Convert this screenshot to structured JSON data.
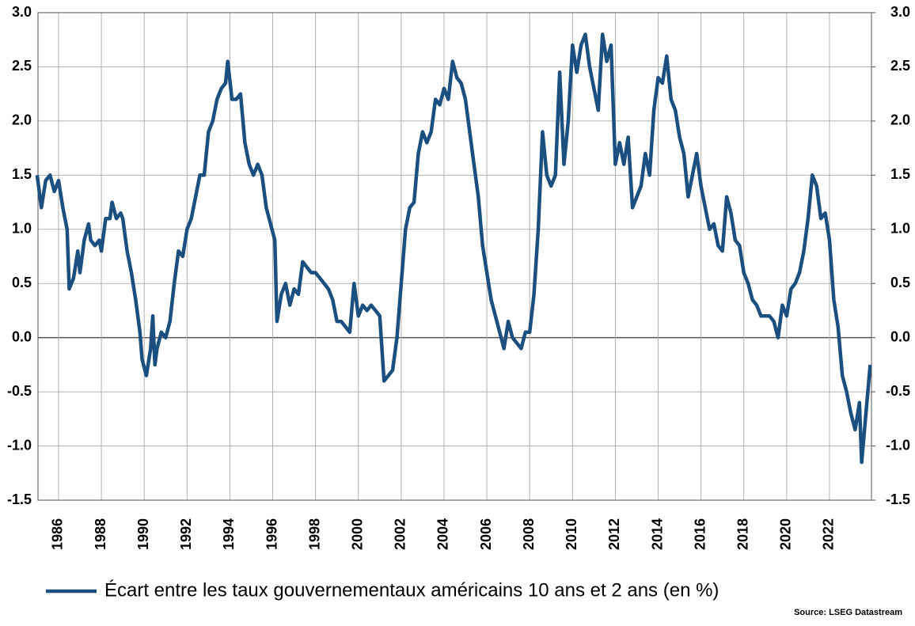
{
  "chart_data": {
    "type": "line",
    "source": "Source: LSEG Datastream",
    "x": [
      1985.0,
      1985.2,
      1985.4,
      1985.6,
      1985.8,
      1986.0,
      1986.2,
      1986.4,
      1986.5,
      1986.7,
      1986.9,
      1987.0,
      1987.2,
      1987.4,
      1987.5,
      1987.7,
      1987.9,
      1988.0,
      1988.2,
      1988.4,
      1988.5,
      1988.7,
      1988.9,
      1989.0,
      1989.2,
      1989.4,
      1989.6,
      1989.8,
      1989.9,
      1990.1,
      1990.3,
      1990.4,
      1990.5,
      1990.6,
      1990.8,
      1991.0,
      1991.2,
      1991.4,
      1991.6,
      1991.8,
      1992.0,
      1992.2,
      1992.4,
      1992.6,
      1992.8,
      1993.0,
      1993.2,
      1993.4,
      1993.6,
      1993.8,
      1993.9,
      1994.1,
      1994.3,
      1994.5,
      1994.7,
      1994.9,
      1995.1,
      1995.3,
      1995.5,
      1995.7,
      1995.9,
      1996.1,
      1996.2,
      1996.4,
      1996.6,
      1996.8,
      1997.0,
      1997.2,
      1997.4,
      1997.6,
      1997.8,
      1998.0,
      1998.2,
      1998.4,
      1998.6,
      1998.8,
      1999.0,
      1999.2,
      1999.4,
      1999.6,
      1999.8,
      2000.0,
      2000.2,
      2000.4,
      2000.6,
      2000.8,
      2001.0,
      2001.2,
      2001.4,
      2001.6,
      2001.8,
      2002.0,
      2002.2,
      2002.4,
      2002.6,
      2002.8,
      2003.0,
      2003.2,
      2003.4,
      2003.6,
      2003.8,
      2004.0,
      2004.2,
      2004.4,
      2004.6,
      2004.8,
      2005.0,
      2005.2,
      2005.4,
      2005.6,
      2005.8,
      2006.0,
      2006.2,
      2006.4,
      2006.6,
      2006.8,
      2007.0,
      2007.2,
      2007.4,
      2007.6,
      2007.8,
      2008.0,
      2008.2,
      2008.4,
      2008.6,
      2008.8,
      2009.0,
      2009.2,
      2009.4,
      2009.6,
      2009.8,
      2010.0,
      2010.2,
      2010.4,
      2010.6,
      2010.8,
      2011.0,
      2011.2,
      2011.4,
      2011.6,
      2011.8,
      2012.0,
      2012.2,
      2012.4,
      2012.6,
      2012.8,
      2013.0,
      2013.2,
      2013.4,
      2013.6,
      2013.8,
      2014.0,
      2014.2,
      2014.4,
      2014.6,
      2014.8,
      2015.0,
      2015.2,
      2015.4,
      2015.6,
      2015.8,
      2016.0,
      2016.2,
      2016.4,
      2016.6,
      2016.8,
      2017.0,
      2017.2,
      2017.4,
      2017.6,
      2017.8,
      2018.0,
      2018.2,
      2018.4,
      2018.6,
      2018.8,
      2019.0,
      2019.2,
      2019.4,
      2019.6,
      2019.8,
      2020.0,
      2020.2,
      2020.4,
      2020.6,
      2020.8,
      2021.0,
      2021.2,
      2021.4,
      2021.6,
      2021.8,
      2022.0,
      2022.2,
      2022.4,
      2022.6,
      2022.8,
      2023.0,
      2023.2,
      2023.4,
      2023.5,
      2023.7,
      2023.9
    ],
    "series": [
      {
        "name": "Écart entre les taux gouvernementaux américains 10 ans et 2 ans (en %)",
        "color": "#1a4f80",
        "values": [
          1.5,
          1.2,
          1.45,
          1.5,
          1.35,
          1.45,
          1.2,
          1.0,
          0.45,
          0.55,
          0.8,
          0.6,
          0.9,
          1.05,
          0.9,
          0.85,
          0.9,
          0.8,
          1.1,
          1.1,
          1.25,
          1.1,
          1.15,
          1.1,
          0.8,
          0.6,
          0.35,
          0.05,
          -0.2,
          -0.35,
          -0.1,
          0.2,
          -0.25,
          -0.1,
          0.05,
          0.0,
          0.15,
          0.5,
          0.8,
          0.75,
          1.0,
          1.1,
          1.3,
          1.5,
          1.5,
          1.9,
          2.0,
          2.2,
          2.3,
          2.35,
          2.55,
          2.2,
          2.2,
          2.25,
          1.8,
          1.6,
          1.5,
          1.6,
          1.5,
          1.2,
          1.05,
          0.9,
          0.15,
          0.4,
          0.5,
          0.3,
          0.45,
          0.4,
          0.7,
          0.65,
          0.6,
          0.6,
          0.55,
          0.5,
          0.45,
          0.35,
          0.15,
          0.15,
          0.1,
          0.05,
          0.5,
          0.2,
          0.3,
          0.25,
          0.3,
          0.25,
          0.2,
          -0.4,
          -0.35,
          -0.3,
          0.0,
          0.5,
          1.0,
          1.2,
          1.25,
          1.7,
          1.9,
          1.8,
          1.9,
          2.2,
          2.15,
          2.3,
          2.2,
          2.55,
          2.4,
          2.35,
          2.2,
          1.9,
          1.6,
          1.3,
          0.85,
          0.6,
          0.35,
          0.2,
          0.05,
          -0.1,
          0.15,
          0.0,
          -0.05,
          -0.1,
          0.05,
          0.05,
          0.4,
          1.0,
          1.9,
          1.5,
          1.4,
          1.5,
          2.45,
          1.6,
          2.0,
          2.7,
          2.45,
          2.7,
          2.8,
          2.5,
          2.3,
          2.1,
          2.8,
          2.55,
          2.7,
          1.6,
          1.8,
          1.6,
          1.85,
          1.2,
          1.3,
          1.4,
          1.7,
          1.5,
          2.1,
          2.4,
          2.35,
          2.6,
          2.2,
          2.1,
          1.85,
          1.7,
          1.3,
          1.5,
          1.7,
          1.4,
          1.2,
          1.0,
          1.05,
          0.85,
          0.8,
          1.3,
          1.15,
          0.9,
          0.85,
          0.6,
          0.5,
          0.35,
          0.3,
          0.2,
          0.2,
          0.2,
          0.15,
          0.0,
          0.3,
          0.2,
          0.45,
          0.5,
          0.6,
          0.8,
          1.1,
          1.5,
          1.4,
          1.1,
          1.15,
          0.9,
          0.35,
          0.1,
          -0.35,
          -0.5,
          -0.7,
          -0.85,
          -0.6,
          -1.15,
          -0.7,
          -0.25
        ]
      }
    ],
    "xlim": [
      1985.04,
      2023.96
    ],
    "xticks": [
      1986,
      1988,
      1990,
      1992,
      1994,
      1996,
      1998,
      2000,
      2002,
      2004,
      2006,
      2008,
      2010,
      2012,
      2014,
      2016,
      2018,
      2020,
      2022
    ],
    "ylim": [
      -1.5,
      3.0
    ],
    "yticks": [
      {
        "value": -1.5,
        "label": "-1.5"
      },
      {
        "value": -1,
        "label": "-1.0"
      },
      -0.5,
      {
        "value": 0,
        "label": "0.0"
      },
      0.5,
      {
        "value": 1,
        "label": "1.0"
      },
      1.5,
      {
        "value": 2,
        "label": "2.0"
      },
      2.5,
      {
        "value": 3,
        "label": "3.0"
      }
    ],
    "y2lim": [
      -1.5,
      3.0
    ],
    "y2ticks": [
      {
        "value": -1.5,
        "label": "-1.5"
      },
      {
        "value": -1,
        "label": "-1.0"
      },
      -0.5,
      {
        "value": 0,
        "label": "0.0"
      },
      0.5,
      {
        "value": 1,
        "label": "1.0"
      },
      1.5,
      {
        "value": 2,
        "label": "2.0"
      },
      2.5,
      {
        "value": 3,
        "label": "3.0"
      }
    ],
    "grid": true,
    "legend": "bottom"
  }
}
